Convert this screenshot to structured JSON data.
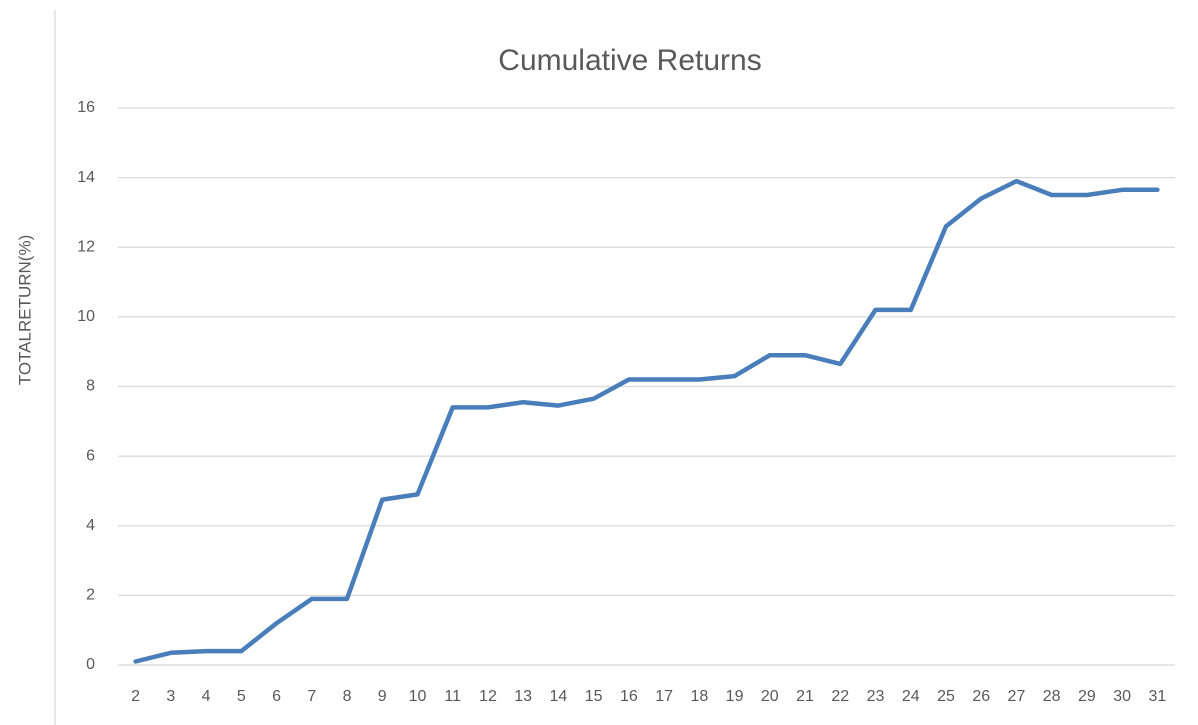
{
  "chart_data": {
    "type": "line",
    "title": "Cumulative Returns",
    "y_label": "TOTALRETURN(%)",
    "categories": [
      "2",
      "3",
      "4",
      "5",
      "6",
      "7",
      "8",
      "9",
      "10",
      "11",
      "12",
      "13",
      "14",
      "15",
      "16",
      "17",
      "18",
      "19",
      "20",
      "21",
      "22",
      "23",
      "24",
      "25",
      "26",
      "27",
      "28",
      "29",
      "30",
      "31"
    ],
    "series": [
      {
        "name": "Cumulative Returns",
        "color": "#4a7ebb",
        "values": [
          0.1,
          0.35,
          0.4,
          0.4,
          1.2,
          1.9,
          1.9,
          4.75,
          4.9,
          7.4,
          7.4,
          7.55,
          7.45,
          7.65,
          8.2,
          8.2,
          8.2,
          8.3,
          8.9,
          8.9,
          8.65,
          10.2,
          10.2,
          12.6,
          13.4,
          13.9,
          13.5,
          13.5,
          13.65,
          13.65
        ]
      }
    ],
    "ylim": [
      0,
      16
    ],
    "yticks": [
      0,
      2,
      4,
      6,
      8,
      10,
      12,
      14,
      16
    ],
    "grid": true
  }
}
